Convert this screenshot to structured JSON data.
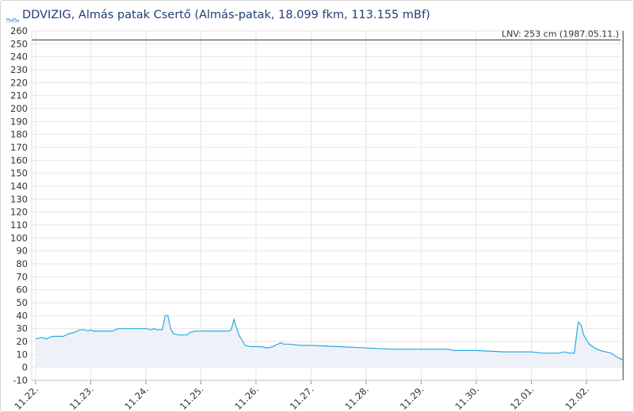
{
  "header": {
    "logo_text": "VIZIG",
    "title": "DDVIZIG, Almás patak Csertő (Almás-patak, 18.099 fkm, 113.155 mBf)"
  },
  "chart_data": {
    "type": "area",
    "title": "DDVIZIG, Almás patak Csertő (Almás-patak, 18.099 fkm, 113.155 mBf)",
    "ylim": [
      -10,
      260
    ],
    "ytick_step": 10,
    "x_ticks": [
      "11.22.",
      "11.23.",
      "11.24.",
      "11.25.",
      "11.26.",
      "11.27.",
      "11.28.",
      "11.29.",
      "11.30.",
      "12.01.",
      "12.02."
    ],
    "grid": true,
    "line_color": "#29a9e1",
    "fill_color": "#eef2f8",
    "reference_line": {
      "label": "LNV: 253 cm (1987.05.11.)",
      "value": 253
    },
    "series": [
      {
        "points": [
          [
            0.0,
            22
          ],
          [
            0.1,
            23
          ],
          [
            0.2,
            22
          ],
          [
            0.3,
            24
          ],
          [
            0.5,
            24
          ],
          [
            0.6,
            26
          ],
          [
            0.7,
            27
          ],
          [
            0.8,
            29
          ],
          [
            0.9,
            29
          ],
          [
            0.95,
            28
          ],
          [
            1.0,
            29
          ],
          [
            1.05,
            28
          ],
          [
            1.1,
            28
          ],
          [
            1.4,
            28
          ],
          [
            1.5,
            30
          ],
          [
            1.7,
            30
          ],
          [
            1.9,
            30
          ],
          [
            2.0,
            30
          ],
          [
            2.1,
            29
          ],
          [
            2.15,
            30
          ],
          [
            2.2,
            29
          ],
          [
            2.3,
            29
          ],
          [
            2.35,
            40
          ],
          [
            2.4,
            40
          ],
          [
            2.45,
            30
          ],
          [
            2.5,
            26
          ],
          [
            2.6,
            25
          ],
          [
            2.75,
            25
          ],
          [
            2.8,
            27
          ],
          [
            2.9,
            28
          ],
          [
            3.5,
            28
          ],
          [
            3.55,
            29
          ],
          [
            3.6,
            37
          ],
          [
            3.65,
            30
          ],
          [
            3.7,
            24
          ],
          [
            3.75,
            21
          ],
          [
            3.8,
            17
          ],
          [
            3.9,
            16
          ],
          [
            4.0,
            16
          ],
          [
            4.1,
            16
          ],
          [
            4.2,
            15
          ],
          [
            4.3,
            16
          ],
          [
            4.4,
            18
          ],
          [
            4.45,
            19
          ],
          [
            4.5,
            18
          ],
          [
            4.6,
            18
          ],
          [
            4.8,
            17
          ],
          [
            5.0,
            17
          ],
          [
            5.5,
            16
          ],
          [
            6.0,
            15
          ],
          [
            6.5,
            14
          ],
          [
            7.0,
            14
          ],
          [
            7.5,
            14
          ],
          [
            7.6,
            13
          ],
          [
            8.0,
            13
          ],
          [
            8.5,
            12
          ],
          [
            9.0,
            12
          ],
          [
            9.2,
            11
          ],
          [
            9.5,
            11
          ],
          [
            9.6,
            12
          ],
          [
            9.7,
            11
          ],
          [
            9.78,
            11
          ],
          [
            9.85,
            35
          ],
          [
            9.9,
            33
          ],
          [
            9.95,
            25
          ],
          [
            10.05,
            18
          ],
          [
            10.15,
            15
          ],
          [
            10.25,
            13
          ],
          [
            10.35,
            12
          ],
          [
            10.45,
            11
          ],
          [
            10.55,
            8
          ],
          [
            10.6,
            7
          ],
          [
            10.65,
            6
          ]
        ]
      }
    ]
  }
}
